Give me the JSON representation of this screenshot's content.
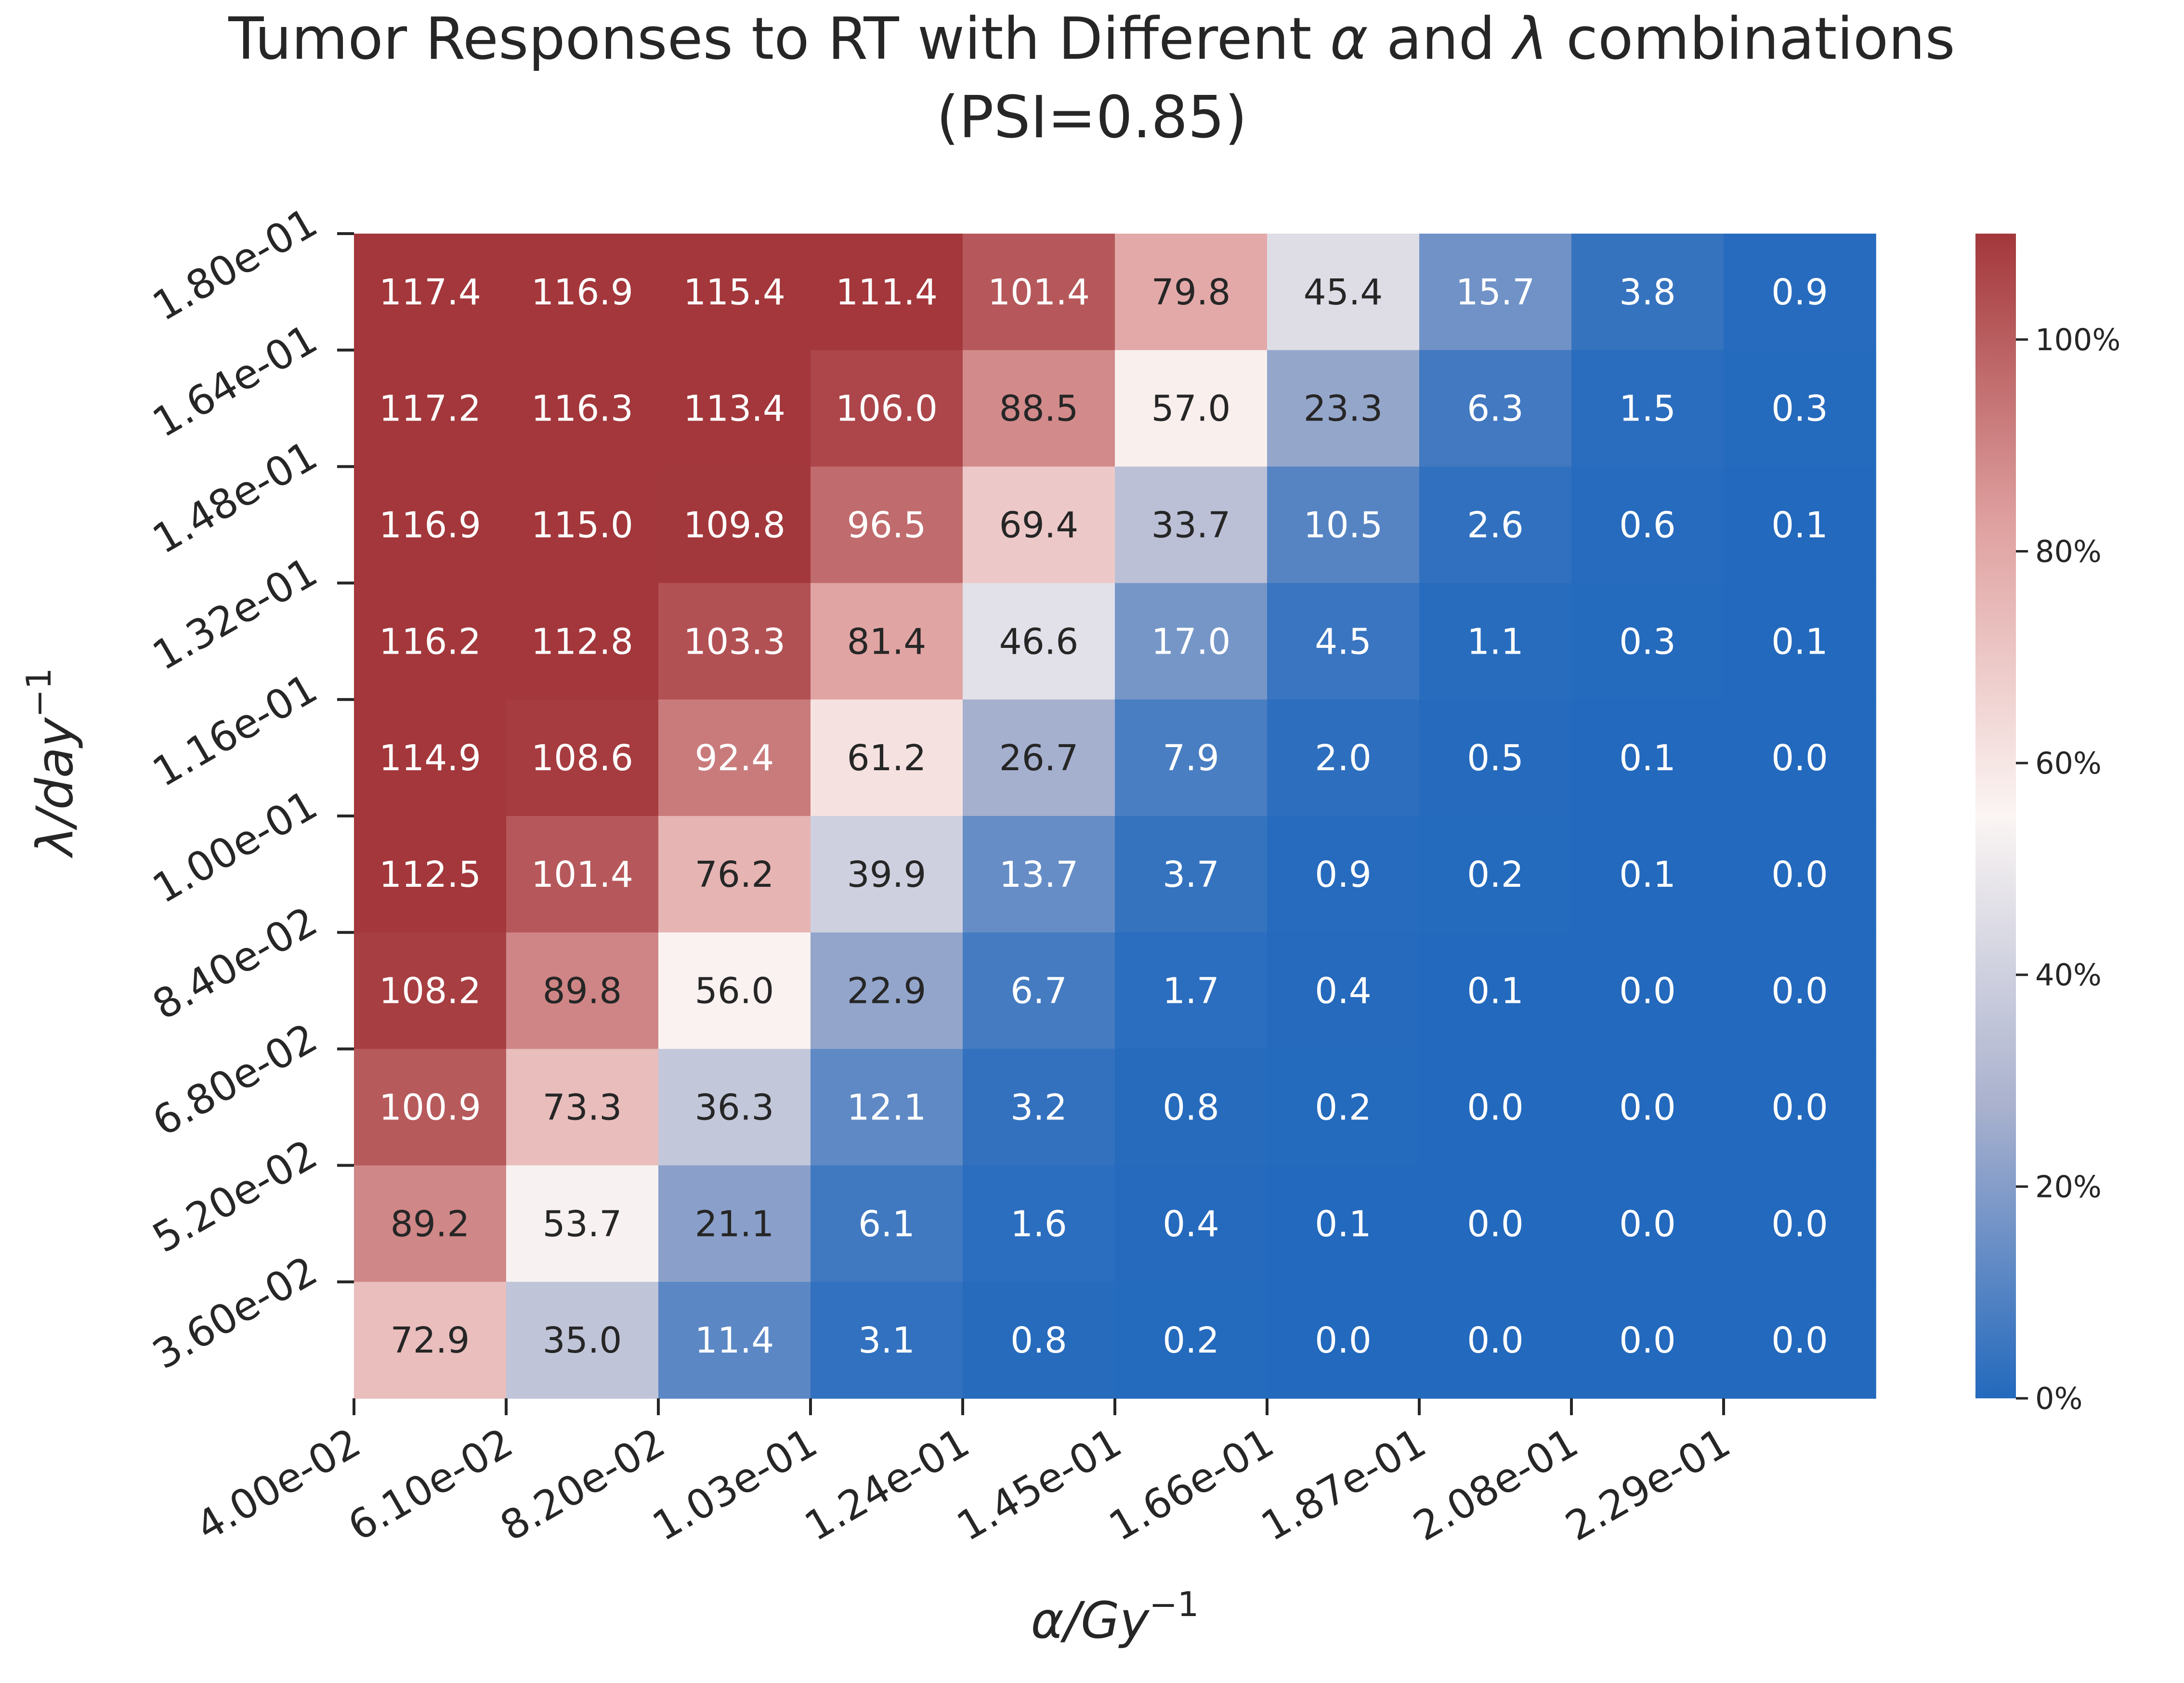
{
  "chart_data": {
    "type": "heatmap",
    "title_line1_prefix": "Tumor Responses to RT with Different ",
    "title_alpha": "α",
    "title_mid": " and ",
    "title_lambda": "λ",
    "title_line1_suffix": " combinations",
    "title_line2": "(PSI=0.85)",
    "xlabel_symbol": "α",
    "xlabel_unit": "/Gy",
    "xlabel_exp": "−1",
    "ylabel_symbol": "λ",
    "ylabel_unit": "/day",
    "ylabel_exp": "−1",
    "x_tick_labels": [
      "4.00e-02",
      "6.10e-02",
      "8.20e-02",
      "1.03e-01",
      "1.24e-01",
      "1.45e-01",
      "1.66e-01",
      "1.87e-01",
      "2.08e-01",
      "2.29e-01"
    ],
    "y_tick_labels": [
      "1.80e-01",
      "1.64e-01",
      "1.48e-01",
      "1.32e-01",
      "1.16e-01",
      "1.00e-01",
      "8.40e-02",
      "6.80e-02",
      "5.20e-02",
      "3.60e-02"
    ],
    "values": [
      [
        117.4,
        116.9,
        115.4,
        111.4,
        101.4,
        79.8,
        45.4,
        15.7,
        3.8,
        0.9
      ],
      [
        117.2,
        116.3,
        113.4,
        106.0,
        88.5,
        57.0,
        23.3,
        6.3,
        1.5,
        0.3
      ],
      [
        116.9,
        115.0,
        109.8,
        96.5,
        69.4,
        33.7,
        10.5,
        2.6,
        0.6,
        0.1
      ],
      [
        116.2,
        112.8,
        103.3,
        81.4,
        46.6,
        17.0,
        4.5,
        1.1,
        0.3,
        0.1
      ],
      [
        114.9,
        108.6,
        92.4,
        61.2,
        26.7,
        7.9,
        2.0,
        0.5,
        0.1,
        0.0
      ],
      [
        112.5,
        101.4,
        76.2,
        39.9,
        13.7,
        3.7,
        0.9,
        0.2,
        0.1,
        0.0
      ],
      [
        108.2,
        89.8,
        56.0,
        22.9,
        6.7,
        1.7,
        0.4,
        0.1,
        0.0,
        0.0
      ],
      [
        100.9,
        73.3,
        36.3,
        12.1,
        3.2,
        0.8,
        0.2,
        0.0,
        0.0,
        0.0
      ],
      [
        89.2,
        53.7,
        21.1,
        6.1,
        1.6,
        0.4,
        0.1,
        0.0,
        0.0,
        0.0
      ],
      [
        72.9,
        35.0,
        11.4,
        3.1,
        0.8,
        0.2,
        0.0,
        0.0,
        0.0,
        0.0
      ]
    ],
    "value_format": "0.1",
    "color_range": [
      0,
      110
    ],
    "colormap": "vlag",
    "color_stops": [
      "#2369bd",
      "#a9b1ce",
      "#fbf5f3",
      "#dfa1a0",
      "#a3373b"
    ],
    "colorbar_ticks": [
      {
        "value": 0,
        "label": "0%"
      },
      {
        "value": 20,
        "label": "20%"
      },
      {
        "value": 40,
        "label": "40%"
      },
      {
        "value": 60,
        "label": "60%"
      },
      {
        "value": 80,
        "label": "80%"
      },
      {
        "value": 100,
        "label": "100%"
      }
    ],
    "annotation_text_dark": "#262626",
    "annotation_text_light": "#ffffff"
  }
}
